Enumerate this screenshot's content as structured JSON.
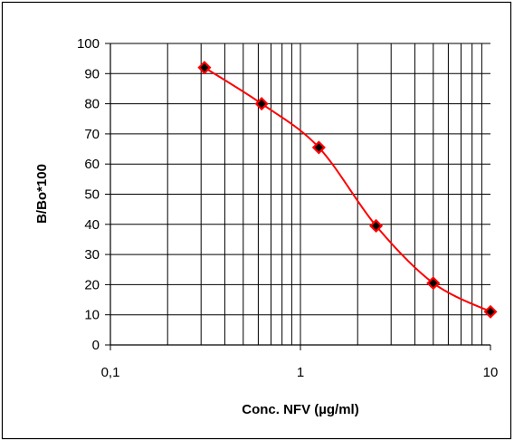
{
  "chart_data": {
    "type": "line",
    "xlabel": "Conc. NFV (µg/ml)",
    "ylabel": "B/Bo*100",
    "x_scale": "log",
    "xlim": [
      0.1,
      10
    ],
    "ylim": [
      0,
      100
    ],
    "x_tick_labels": [
      {
        "value": 0.1,
        "label": "0,1"
      },
      {
        "value": 1,
        "label": "1"
      },
      {
        "value": 10,
        "label": "10"
      }
    ],
    "y_ticks": [
      0,
      10,
      20,
      30,
      40,
      50,
      60,
      70,
      80,
      90,
      100
    ],
    "grid": true,
    "legend": "none",
    "series": [
      {
        "x": [
          0.3125,
          0.625,
          1.25,
          2.5,
          5,
          10
        ],
        "y": [
          92,
          80,
          65.5,
          39.5,
          20.5,
          11
        ],
        "line_color": "#ff0000",
        "marker": "diamond",
        "marker_color": "#000000",
        "marker_edge_color": "#ff0000"
      }
    ]
  }
}
